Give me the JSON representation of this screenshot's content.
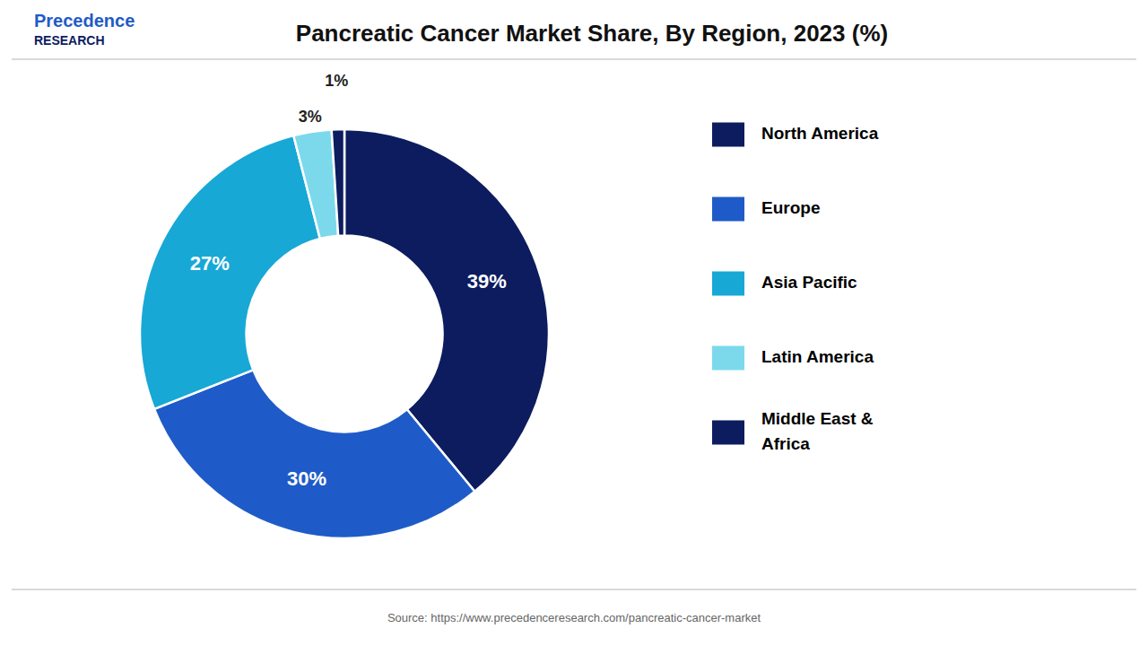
{
  "chart_data": {
    "type": "donut",
    "title": "Pancreatic Cancer Market Share, By Region, 2023 (%)",
    "categories": [
      "North America",
      "Europe",
      "Asia Pacific",
      "Latin America",
      "Middle East &\nAfrica"
    ],
    "values": [
      39,
      30,
      27,
      3,
      1
    ],
    "value_labels": [
      "39%",
      "30%",
      "27%",
      "3%",
      "1%"
    ],
    "data_labels": true,
    "colors": [
      "#0c1c5f",
      "#1f5bc8",
      "#17a8d6",
      "#7cd9ec",
      "#0c1c5f"
    ],
    "legend": "right",
    "annotations": [
      "Source: https://www.precedenceresearch.com/pancreatic-cancer-market",
      "Precedence",
      "RESEARCH"
    ]
  }
}
